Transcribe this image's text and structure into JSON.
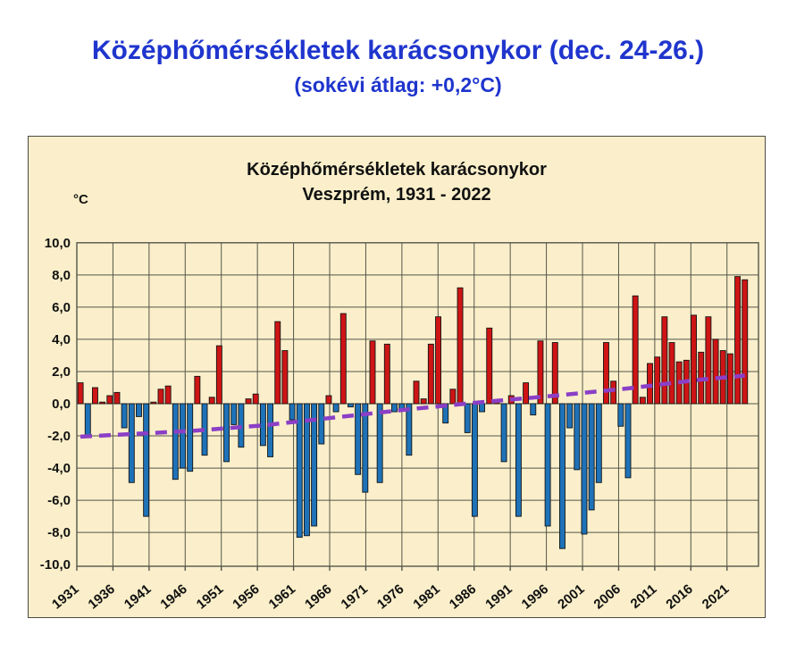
{
  "header": {
    "title": "Középhőmérsékletek karácsonykor (dec. 24-26.)",
    "subtitle": "(sokévi átlag: +0,2°C)",
    "title_color": "#1f35cd"
  },
  "panel": {
    "title_line1": "Középhőmérsékletek  karácsonykor",
    "title_line2": "Veszprém, 1931 - 2022",
    "y_unit_label": "°C",
    "background_color": "#faefca"
  },
  "chart_data": {
    "type": "bar",
    "title": "Középhőmérsékletek karácsonykor",
    "subtitle": "Veszprém, 1931 - 2022",
    "ylabel": "°C",
    "ylim": [
      -10,
      10
    ],
    "y_tick_step": 2,
    "grid": true,
    "y_tick_labels": [
      "10,0",
      "8,0",
      "6,0",
      "4,0",
      "2,0",
      "0,0",
      "-2,0",
      "-4,0",
      "-6,0",
      "-8,0",
      "-10,0"
    ],
    "x_tick_years": [
      1931,
      1936,
      1941,
      1946,
      1951,
      1956,
      1961,
      1966,
      1971,
      1976,
      1981,
      1986,
      1991,
      1996,
      2001,
      2006,
      2011,
      2016,
      2021
    ],
    "years": [
      1931,
      1932,
      1933,
      1934,
      1935,
      1936,
      1937,
      1938,
      1939,
      1940,
      1941,
      1942,
      1943,
      1944,
      1945,
      1946,
      1947,
      1948,
      1949,
      1950,
      1951,
      1952,
      1953,
      1954,
      1955,
      1956,
      1957,
      1958,
      1959,
      1960,
      1961,
      1962,
      1963,
      1964,
      1965,
      1966,
      1967,
      1968,
      1969,
      1970,
      1971,
      1972,
      1973,
      1974,
      1975,
      1976,
      1977,
      1978,
      1979,
      1980,
      1981,
      1982,
      1983,
      1984,
      1985,
      1986,
      1987,
      1988,
      1989,
      1990,
      1991,
      1992,
      1993,
      1994,
      1995,
      1996,
      1997,
      1998,
      1999,
      2000,
      2001,
      2002,
      2003,
      2004,
      2005,
      2006,
      2007,
      2008,
      2009,
      2010,
      2011,
      2012,
      2013,
      2014,
      2015,
      2016,
      2017,
      2018,
      2019,
      2020,
      2021,
      2022
    ],
    "values": [
      1.3,
      -2.1,
      1.0,
      0.1,
      0.5,
      0.7,
      -1.5,
      -4.9,
      -0.8,
      -7.0,
      0.1,
      0.9,
      1.1,
      -4.7,
      -4.0,
      -4.2,
      1.7,
      -3.2,
      0.4,
      3.6,
      -3.6,
      -1.3,
      -2.7,
      0.3,
      0.6,
      -2.6,
      -3.3,
      5.1,
      3.3,
      -1.0,
      -8.3,
      -8.2,
      -7.6,
      -2.5,
      0.5,
      -0.5,
      5.6,
      -0.2,
      -4.4,
      -5.5,
      3.9,
      -4.9,
      3.7,
      -0.5,
      -0.4,
      -3.2,
      1.4,
      0.3,
      3.7,
      5.4,
      -1.2,
      0.9,
      7.2,
      -1.8,
      -7.0,
      -0.5,
      4.7,
      0.2,
      -3.6,
      0.5,
      -7.0,
      1.3,
      -0.7,
      3.9,
      -7.6,
      3.8,
      -9.0,
      -1.5,
      -4.1,
      -8.1,
      -6.6,
      -4.9,
      3.8,
      1.4,
      -1.4,
      -4.6,
      6.7,
      0.4,
      2.5,
      2.9,
      5.4,
      3.8,
      2.6,
      2.7,
      5.5,
      3.2,
      5.4,
      4.0,
      3.3,
      3.1,
      7.9,
      7.7
    ],
    "positive_color": "#ce1414",
    "negative_color": "#1e72b8",
    "bar_outline_color": "#141414",
    "gridline_color": "#55554a",
    "legend": "none",
    "trend": {
      "style": "dashed",
      "color": "#8b3fc6",
      "points": [
        [
          1931,
          -2.05
        ],
        [
          1946,
          -1.7
        ],
        [
          1956,
          -1.35
        ],
        [
          1966,
          -0.85
        ],
        [
          1976,
          -0.35
        ],
        [
          1986,
          0.1
        ],
        [
          1996,
          0.5
        ],
        [
          2006,
          0.95
        ],
        [
          2016,
          1.5
        ],
        [
          2022,
          1.75
        ]
      ]
    }
  }
}
